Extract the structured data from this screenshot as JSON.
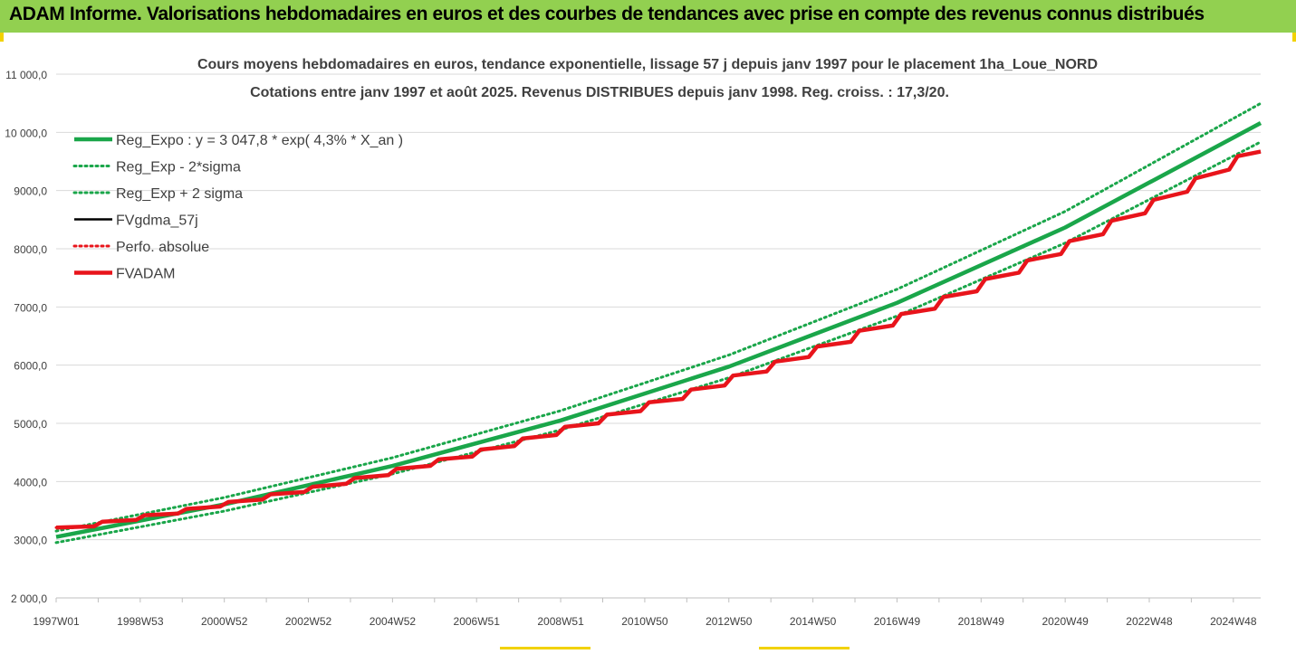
{
  "header": {
    "title": "ADAM Informe. Valorisations hebdomadaires en euros et des courbes de tendances avec prise en compte des revenus connus distribués"
  },
  "colors": {
    "header_bg": "#92d050",
    "trend_green": "#1aa64a",
    "fv_black": "#000000",
    "fv_red": "#e8141b",
    "grid": "#d9d9d9"
  },
  "chart_data": {
    "type": "line",
    "title": "Cours moyens hebdomadaires en euros, tendance exponentielle, lissage 57 j depuis janv 1997 pour le placement 1ha_Loue_NORD",
    "subtitle": "Cotations entre janv 1997 et août 2025. Revenus DISTRIBUES depuis janv 1998. Reg. croiss. : 17,3/20.",
    "xlabel": "",
    "ylabel": "",
    "ylim": [
      2000,
      11000
    ],
    "yticks": [
      "2 000,0",
      "3000,0",
      "4000,0",
      "5000,0",
      "6000,0",
      "7000,0",
      "8000,0",
      "9000,0",
      "10 000,0",
      "11 000,0"
    ],
    "xticks": [
      "1997W01",
      "1998W53",
      "2000W52",
      "2002W52",
      "2004W52",
      "2006W51",
      "2008W51",
      "2010W50",
      "2012W50",
      "2014W50",
      "2016W49",
      "2018W49",
      "2020W49",
      "2022W48",
      "2024W48"
    ],
    "x_tick_years": [
      1997.0,
      1999.0,
      2001.0,
      2003.0,
      2005.0,
      2007.0,
      2009.0,
      2011.0,
      2013.0,
      2015.0,
      2017.0,
      2019.0,
      2021.0,
      2023.0,
      2025.0
    ],
    "x_range": [
      1997.0,
      2025.65
    ],
    "grid": "horizontal",
    "legend_position": "top-left",
    "series": [
      {
        "name": "Reg_Expo : y = 3 047,8 * exp( 4,3% *  X_an )",
        "style": "solid-thick",
        "color": "#1aa64a",
        "x": [
          1997,
          2001,
          2005,
          2009,
          2013,
          2017,
          2021,
          2025.65
        ],
        "y": [
          3048,
          3607,
          4268,
          5050,
          5975,
          7070,
          8366,
          10160
        ]
      },
      {
        "name": "Reg_Exp - 2*sigma",
        "style": "dotted",
        "color": "#1aa64a",
        "x": [
          1997,
          2001,
          2005,
          2009,
          2013,
          2017,
          2021,
          2025.65
        ],
        "y": [
          2950,
          3492,
          4131,
          4888,
          5784,
          6844,
          8098,
          9835
        ]
      },
      {
        "name": "Reg_Exp + 2 sigma",
        "style": "dotted",
        "color": "#1aa64a",
        "x": [
          1997,
          2001,
          2005,
          2009,
          2013,
          2017,
          2021,
          2025.65
        ],
        "y": [
          3149,
          3726,
          4409,
          5217,
          6173,
          7304,
          8642,
          10498
        ]
      },
      {
        "name": "FVgdma_57j",
        "style": "solid",
        "color": "#000000",
        "x": [
          1997,
          1997.9,
          1998.1,
          1998.9,
          1999.1,
          1999.9,
          2000.1,
          2000.9,
          2001.1,
          2001.9,
          2002.1,
          2002.9,
          2003.1,
          2003.9,
          2004.1,
          2004.9,
          2005.1,
          2005.9,
          2006.1,
          2006.9,
          2007.1,
          2007.9,
          2008.1,
          2008.9,
          2009.1,
          2009.9,
          2010.1,
          2010.9,
          2011.1,
          2011.9,
          2012.1,
          2012.9,
          2013.1,
          2013.9,
          2014.1,
          2014.9,
          2015.1,
          2015.9,
          2016.1,
          2016.9,
          2017.1,
          2017.9,
          2018.1,
          2018.9,
          2019.1,
          2019.9,
          2020.1,
          2020.9,
          2021.1,
          2021.9,
          2022.1,
          2022.9,
          2023.1,
          2023.9,
          2024.1,
          2024.9,
          2025.1,
          2025.65
        ],
        "y": [
          3210,
          3230,
          3310,
          3340,
          3420,
          3450,
          3530,
          3570,
          3650,
          3690,
          3780,
          3820,
          3910,
          3960,
          4060,
          4110,
          4220,
          4270,
          4380,
          4430,
          4550,
          4610,
          4740,
          4800,
          4940,
          5000,
          5150,
          5210,
          5360,
          5420,
          5580,
          5650,
          5820,
          5890,
          6060,
          6140,
          6320,
          6400,
          6590,
          6680,
          6880,
          6970,
          7170,
          7270,
          7480,
          7590,
          7800,
          7910,
          8130,
          8250,
          8480,
          8610,
          8840,
          8980,
          9210,
          9360,
          9590,
          9670
        ]
      },
      {
        "name": "Perfo. absolue",
        "style": "dotted",
        "color": "#e8141b",
        "x": [
          1997,
          1997.9,
          1998.1,
          1998.9,
          1999.1,
          1999.9,
          2000.1,
          2000.9,
          2001.1,
          2001.9,
          2002.1,
          2002.9,
          2003.1,
          2003.9,
          2004.1,
          2004.9,
          2005.1,
          2005.9,
          2006.1,
          2006.9,
          2007.1,
          2007.9,
          2008.1,
          2008.9,
          2009.1,
          2009.9,
          2010.1,
          2010.9,
          2011.1,
          2011.9,
          2012.1,
          2012.9,
          2013.1,
          2013.9,
          2014.1,
          2014.9,
          2015.1,
          2015.9,
          2016.1,
          2016.9,
          2017.1,
          2017.9,
          2018.1,
          2018.9,
          2019.1,
          2019.9,
          2020.1,
          2020.9,
          2021.1,
          2021.9,
          2022.1,
          2022.9,
          2023.1,
          2023.9,
          2024.1,
          2024.9,
          2025.1,
          2025.65
        ],
        "y": [
          3210,
          3230,
          3310,
          3340,
          3420,
          3450,
          3530,
          3570,
          3650,
          3690,
          3780,
          3820,
          3910,
          3960,
          4060,
          4110,
          4220,
          4270,
          4380,
          4430,
          4550,
          4610,
          4740,
          4800,
          4940,
          5000,
          5150,
          5210,
          5360,
          5420,
          5580,
          5650,
          5820,
          5890,
          6060,
          6140,
          6320,
          6400,
          6590,
          6680,
          6880,
          6970,
          7170,
          7270,
          7480,
          7590,
          7800,
          7910,
          8130,
          8250,
          8480,
          8610,
          8840,
          8980,
          9210,
          9360,
          9590,
          9670
        ]
      },
      {
        "name": "FVADAM",
        "style": "solid-thick",
        "color": "#e8141b",
        "x": [
          1997,
          1997.9,
          1998.1,
          1998.9,
          1999.1,
          1999.9,
          2000.1,
          2000.9,
          2001.1,
          2001.9,
          2002.1,
          2002.9,
          2003.1,
          2003.9,
          2004.1,
          2004.9,
          2005.1,
          2005.9,
          2006.1,
          2006.9,
          2007.1,
          2007.9,
          2008.1,
          2008.9,
          2009.1,
          2009.9,
          2010.1,
          2010.9,
          2011.1,
          2011.9,
          2012.1,
          2012.9,
          2013.1,
          2013.9,
          2014.1,
          2014.9,
          2015.1,
          2015.9,
          2016.1,
          2016.9,
          2017.1,
          2017.9,
          2018.1,
          2018.9,
          2019.1,
          2019.9,
          2020.1,
          2020.9,
          2021.1,
          2021.9,
          2022.1,
          2022.9,
          2023.1,
          2023.9,
          2024.1,
          2024.9,
          2025.1,
          2025.65
        ],
        "y": [
          3210,
          3230,
          3310,
          3340,
          3420,
          3450,
          3530,
          3570,
          3650,
          3690,
          3780,
          3820,
          3910,
          3960,
          4060,
          4110,
          4220,
          4270,
          4380,
          4430,
          4550,
          4610,
          4740,
          4800,
          4940,
          5000,
          5150,
          5210,
          5360,
          5420,
          5580,
          5650,
          5820,
          5890,
          6060,
          6140,
          6320,
          6400,
          6590,
          6680,
          6880,
          6970,
          7170,
          7270,
          7480,
          7590,
          7800,
          7910,
          8130,
          8250,
          8480,
          8610,
          8840,
          8980,
          9210,
          9360,
          9590,
          9670
        ]
      }
    ]
  }
}
